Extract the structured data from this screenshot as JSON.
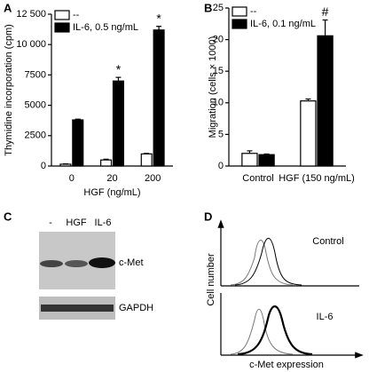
{
  "chart_data": [
    {
      "type": "bar",
      "panel": "A",
      "ylabel": "Thymidine incorporation (cpm)",
      "xlabel": "HGF (ng/mL)",
      "categories": [
        "0",
        "20",
        "200"
      ],
      "series": [
        {
          "name": "--",
          "color": "#ffffff",
          "values": [
            150,
            500,
            1000
          ],
          "errors": [
            30,
            60,
            40
          ],
          "value_annotations": [
            null,
            null,
            null
          ]
        },
        {
          "name": "IL-6, 0.5 ng/mL",
          "color": "#000000",
          "values": [
            3800,
            7000,
            11200
          ],
          "errors": [
            60,
            300,
            300
          ],
          "value_annotations": [
            null,
            "*",
            "*"
          ]
        }
      ],
      "ylim": [
        0,
        12500
      ],
      "yticks": [
        0,
        2500,
        5000,
        7500,
        {
          "value": 10000,
          "label": "10 000"
        },
        {
          "value": 12500,
          "label": "12 500"
        }
      ]
    },
    {
      "type": "bar",
      "panel": "B",
      "ylabel": "Migration (cells × 1000)",
      "categories": [
        "Control",
        "HGF (150 ng/mL)"
      ],
      "series": [
        {
          "name": "--",
          "color": "#ffffff",
          "values": [
            2.0,
            10.3
          ],
          "errors": [
            0.4,
            0.3
          ],
          "value_annotations": [
            null,
            null
          ]
        },
        {
          "name": "IL-6, 0.1 ng/mL",
          "color": "#000000",
          "values": [
            1.8,
            20.6
          ],
          "errors": [
            0.1,
            2.5
          ],
          "value_annotations": [
            null,
            "#"
          ]
        }
      ],
      "ylim": [
        0,
        25
      ],
      "yticks": [
        0,
        5,
        10,
        15,
        20,
        25
      ]
    }
  ],
  "blot": {
    "panel": "C",
    "lanes": [
      "-",
      "HGF",
      "IL-6"
    ],
    "bands": [
      "c-Met",
      "GAPDH"
    ]
  },
  "flow": {
    "panel": "D",
    "ylabel": "Cell number",
    "xlabel": "c-Met expression",
    "conditions": [
      "Control",
      "IL-6"
    ]
  }
}
